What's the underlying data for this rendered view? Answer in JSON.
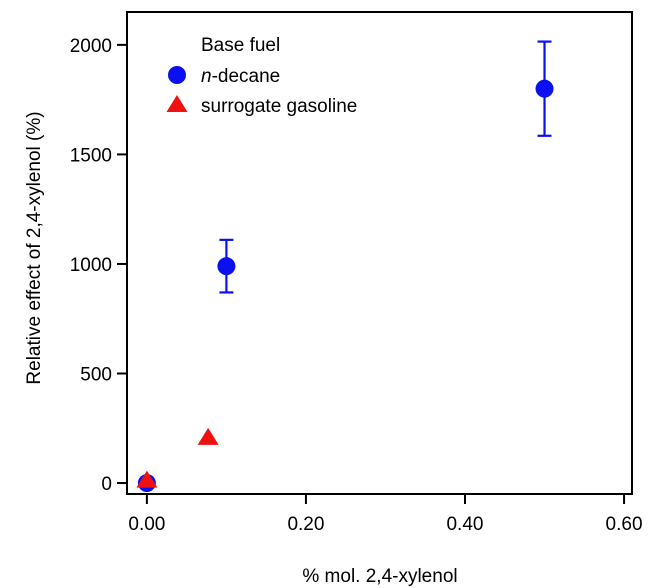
{
  "chart_data": {
    "type": "scatter",
    "title": "",
    "xlabel": "% mol. 2,4-xylenol",
    "ylabel": "Relative effect of 2,4-xylenol (%)",
    "xlim": [
      -0.025,
      0.61
    ],
    "ylim": [
      -50,
      2150
    ],
    "x_ticks": [
      0.0,
      0.2,
      0.4,
      0.6
    ],
    "x_tick_labels": [
      "0.00",
      "0.20",
      "0.40",
      "0.60"
    ],
    "y_ticks": [
      0,
      500,
      1000,
      1500,
      2000
    ],
    "y_tick_labels": [
      "0",
      "500",
      "1000",
      "1500",
      "2000"
    ],
    "grid": false,
    "legend": {
      "title": "Base fuel",
      "placement": "top-left"
    },
    "series": [
      {
        "name_prefix": "n",
        "name_suffix": "-decane",
        "marker": "circle",
        "color": "#0a10f0",
        "points": [
          {
            "x": 0.0,
            "y": 0,
            "err": 0
          },
          {
            "x": 0.1,
            "y": 990,
            "err": 120
          },
          {
            "x": 0.5,
            "y": 1800,
            "err": 215
          }
        ]
      },
      {
        "name": "surrogate gasoline",
        "marker": "triangle",
        "color": "#f01010",
        "points": [
          {
            "x": 0.0,
            "y": 10,
            "err": 0
          },
          {
            "x": 0.077,
            "y": 205,
            "err": 0
          }
        ]
      }
    ]
  }
}
